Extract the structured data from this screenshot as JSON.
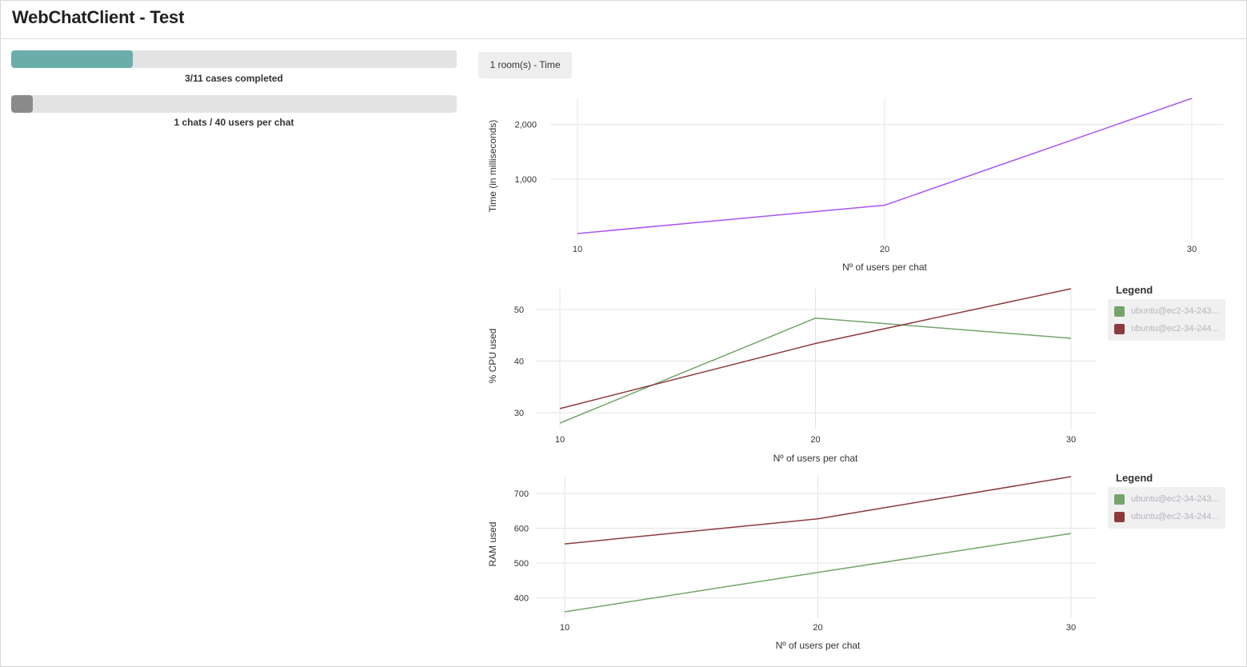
{
  "app": {
    "title": "WebChatClient - Test"
  },
  "progress": [
    {
      "label": "3/11 cases completed",
      "fraction": 0.2727,
      "color": "#6aada9"
    },
    {
      "label": "1 chats / 40 users per chat",
      "fraction": 0.048,
      "color": "#8a8a8a"
    }
  ],
  "tabs": [
    {
      "label": "1 room(s) - Time"
    }
  ],
  "legend_title": "Legend",
  "legends": [
    [
      {
        "label": "ubuntu@ec2-34-243...",
        "color": "#74a46a"
      },
      {
        "label": "ubuntu@ec2-34-244...",
        "color": "#8c3a3d"
      }
    ],
    [
      {
        "label": "ubuntu@ec2-34-243...",
        "color": "#74a46a"
      },
      {
        "label": "ubuntu@ec2-34-244...",
        "color": "#8c3a3d"
      }
    ]
  ],
  "chart_data": [
    {
      "type": "line",
      "title": "",
      "xlabel": "Nº of users per chat",
      "ylabel": "Time (in milliseconds)",
      "x": [
        10,
        20,
        30
      ],
      "xticks": [
        "10",
        "20",
        "30"
      ],
      "yticks": [
        1000,
        2000
      ],
      "ytick_labels": [
        "1,000",
        "2,000"
      ],
      "ylim": [
        0,
        2480
      ],
      "grid": true,
      "series": [
        {
          "name": "",
          "color": "#a855f7",
          "values": [
            0,
            520,
            2480
          ]
        }
      ]
    },
    {
      "type": "line",
      "title": "",
      "xlabel": "Nº of users per chat",
      "ylabel": "% CPU used",
      "x": [
        10,
        20,
        30
      ],
      "xticks": [
        "10",
        "20",
        "30"
      ],
      "yticks": [
        30,
        40,
        50
      ],
      "ytick_labels": [
        "30",
        "40",
        "50"
      ],
      "ylim": [
        28,
        54
      ],
      "grid": true,
      "legend": "right",
      "series": [
        {
          "name": "ubuntu@ec2-34-243...",
          "color": "#74a46a",
          "values": [
            28,
            48.3,
            44.4
          ]
        },
        {
          "name": "ubuntu@ec2-34-244...",
          "color": "#8c3a3d",
          "values": [
            30.8,
            43.4,
            54
          ]
        }
      ]
    },
    {
      "type": "line",
      "title": "",
      "xlabel": "Nº of users per chat",
      "ylabel": "RAM used",
      "x": [
        10,
        20,
        30
      ],
      "xticks": [
        "10",
        "20",
        "30"
      ],
      "yticks": [
        400,
        500,
        600,
        700
      ],
      "ytick_labels": [
        "400",
        "500",
        "600",
        "700"
      ],
      "ylim": [
        360,
        748
      ],
      "grid": true,
      "legend": "right",
      "series": [
        {
          "name": "ubuntu@ec2-34-243...",
          "color": "#74a46a",
          "values": [
            360,
            473,
            585
          ]
        },
        {
          "name": "ubuntu@ec2-34-244...",
          "color": "#8c3a3d",
          "values": [
            555,
            627,
            748
          ]
        }
      ]
    }
  ]
}
